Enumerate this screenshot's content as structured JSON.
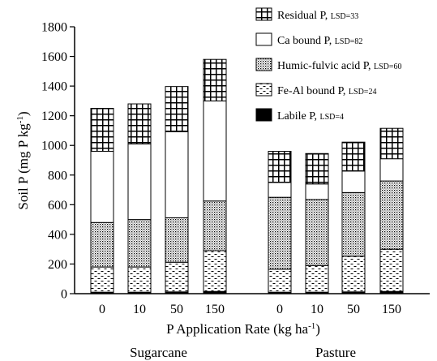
{
  "chart_data": {
    "type": "bar",
    "stacked": true,
    "ylabel_main": "Soil P (mg P kg",
    "ylabel_exp": "-1",
    "ylabel_close": ")",
    "xlabel_main": "P Application Rate (kg ha",
    "xlabel_exp": "-1",
    "xlabel_close": ")",
    "ylim": [
      0,
      1800
    ],
    "yticks": [
      "0",
      "200",
      "400",
      "600",
      "800",
      "1000",
      "1200",
      "1400",
      "1600",
      "1800"
    ],
    "groups": [
      {
        "label": "Sugarcane",
        "categories": [
          "0",
          "10",
          "50",
          "150"
        ]
      },
      {
        "label": "Pasture",
        "categories": [
          "0",
          "10",
          "50",
          "150"
        ]
      }
    ],
    "series": [
      {
        "name": "Labile P",
        "lsd": "LSD=4",
        "pattern": "solid",
        "values": [
          10,
          10,
          12,
          15,
          10,
          10,
          12,
          15
        ]
      },
      {
        "name": "Fe-Al bound P",
        "lsd": "LSD=24",
        "pattern": "dash",
        "values": [
          170,
          170,
          200,
          275,
          155,
          180,
          240,
          285
        ]
      },
      {
        "name": "Humic-fulvic acid P",
        "lsd": "LSD=60",
        "pattern": "dot",
        "values": [
          300,
          320,
          300,
          335,
          485,
          445,
          430,
          460
        ]
      },
      {
        "name": "Ca bound P",
        "lsd": "LSD=82",
        "pattern": "empty",
        "values": [
          480,
          510,
          580,
          675,
          100,
          105,
          145,
          150
        ]
      },
      {
        "name": "Residual P",
        "lsd": "LSD=33",
        "pattern": "grid",
        "values": [
          290,
          270,
          305,
          280,
          210,
          205,
          195,
          205
        ]
      }
    ],
    "legend_position": "top-right",
    "grid": false
  }
}
